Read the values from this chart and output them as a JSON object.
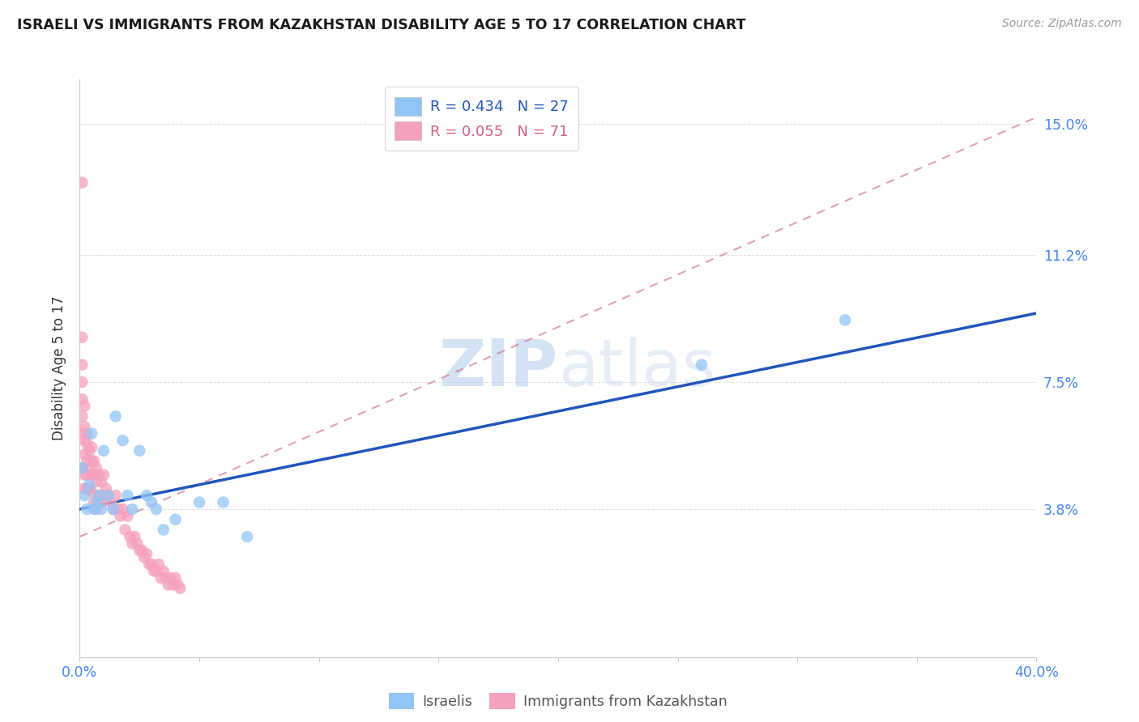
{
  "title": "ISRAELI VS IMMIGRANTS FROM KAZAKHSTAN DISABILITY AGE 5 TO 17 CORRELATION CHART",
  "source": "Source: ZipAtlas.com",
  "ylabel": "Disability Age 5 to 17",
  "ytick_vals": [
    0.038,
    0.075,
    0.112,
    0.15
  ],
  "ytick_labels": [
    "3.8%",
    "7.5%",
    "11.2%",
    "15.0%"
  ],
  "xlim": [
    0.0,
    0.4
  ],
  "ylim": [
    -0.005,
    0.163
  ],
  "color_israeli": "#92C5F5",
  "color_kazakhstan": "#F5A0BC",
  "line_color_israeli": "#2255BB",
  "line_color_kazakhstan": "#D06080",
  "watermark_zip": "ZIP",
  "watermark_atlas": "atlas",
  "background_color": "#FFFFFF",
  "grid_color": "#E0E0E0",
  "israeli_x": [
    0.001,
    0.002,
    0.003,
    0.004,
    0.005,
    0.006,
    0.007,
    0.008,
    0.009,
    0.01,
    0.012,
    0.014,
    0.015,
    0.018,
    0.02,
    0.022,
    0.025,
    0.028,
    0.03,
    0.032,
    0.035,
    0.04,
    0.05,
    0.06,
    0.07,
    0.26,
    0.32
  ],
  "israeli_y": [
    0.05,
    0.042,
    0.038,
    0.045,
    0.06,
    0.038,
    0.04,
    0.042,
    0.038,
    0.055,
    0.042,
    0.038,
    0.065,
    0.058,
    0.042,
    0.038,
    0.055,
    0.042,
    0.04,
    0.038,
    0.032,
    0.035,
    0.04,
    0.04,
    0.03,
    0.08,
    0.093
  ],
  "kazakhstan_x": [
    0.001,
    0.001,
    0.001,
    0.001,
    0.001,
    0.001,
    0.001,
    0.001,
    0.002,
    0.002,
    0.002,
    0.002,
    0.002,
    0.002,
    0.003,
    0.003,
    0.003,
    0.003,
    0.003,
    0.004,
    0.004,
    0.004,
    0.005,
    0.005,
    0.005,
    0.005,
    0.006,
    0.006,
    0.006,
    0.007,
    0.007,
    0.007,
    0.008,
    0.008,
    0.009,
    0.009,
    0.01,
    0.01,
    0.011,
    0.012,
    0.013,
    0.014,
    0.015,
    0.016,
    0.017,
    0.018,
    0.019,
    0.02,
    0.021,
    0.022,
    0.023,
    0.024,
    0.025,
    0.026,
    0.027,
    0.028,
    0.029,
    0.03,
    0.031,
    0.032,
    0.033,
    0.034,
    0.035,
    0.036,
    0.037,
    0.038,
    0.039,
    0.04,
    0.041,
    0.042
  ],
  "kazakhstan_y": [
    0.133,
    0.088,
    0.08,
    0.075,
    0.07,
    0.065,
    0.06,
    0.05,
    0.068,
    0.062,
    0.058,
    0.054,
    0.048,
    0.044,
    0.06,
    0.057,
    0.052,
    0.048,
    0.044,
    0.055,
    0.05,
    0.044,
    0.056,
    0.052,
    0.048,
    0.043,
    0.052,
    0.048,
    0.04,
    0.05,
    0.046,
    0.038,
    0.048,
    0.042,
    0.046,
    0.04,
    0.048,
    0.042,
    0.044,
    0.042,
    0.04,
    0.038,
    0.042,
    0.038,
    0.036,
    0.038,
    0.032,
    0.036,
    0.03,
    0.028,
    0.03,
    0.028,
    0.026,
    0.026,
    0.024,
    0.025,
    0.022,
    0.022,
    0.02,
    0.02,
    0.022,
    0.018,
    0.02,
    0.018,
    0.016,
    0.018,
    0.016,
    0.018,
    0.016,
    0.015
  ],
  "israeli_line_x0": 0.0,
  "israeli_line_y0": 0.038,
  "israeli_line_x1": 0.4,
  "israeli_line_y1": 0.095,
  "kaz_line_x0": 0.0,
  "kaz_line_y0": 0.03,
  "kaz_line_x1": 0.4,
  "kaz_line_y1": 0.152
}
